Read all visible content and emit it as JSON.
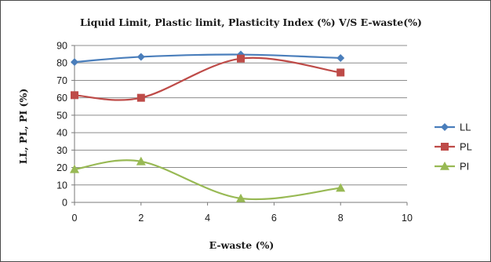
{
  "chart_data": {
    "type": "line",
    "title": "Liquid Limit, Plastic limit, Plasticity Index (%) V/S E-waste(%)",
    "xlabel": "E-waste (%)",
    "ylabel": "LL, PL, PI (%)",
    "xlim": [
      0,
      10
    ],
    "ylim": [
      0,
      90
    ],
    "xticks": [
      0,
      2,
      4,
      6,
      8,
      10
    ],
    "yticks": [
      0,
      10,
      20,
      30,
      40,
      50,
      60,
      70,
      80,
      90
    ],
    "grid": true,
    "smooth": true,
    "legend": "right",
    "x": [
      0,
      2,
      5,
      8
    ],
    "series": [
      {
        "name": "LL",
        "values": [
          80.5,
          83.5,
          84.8,
          82.8
        ],
        "color": "#4a7ebb",
        "marker": "diamond"
      },
      {
        "name": "PL",
        "values": [
          61.5,
          60,
          82.5,
          74.5
        ],
        "color": "#be4b48",
        "marker": "square"
      },
      {
        "name": "PI",
        "values": [
          19,
          23.5,
          2.3,
          8.3
        ],
        "color": "#98b954",
        "marker": "triangle"
      }
    ]
  }
}
